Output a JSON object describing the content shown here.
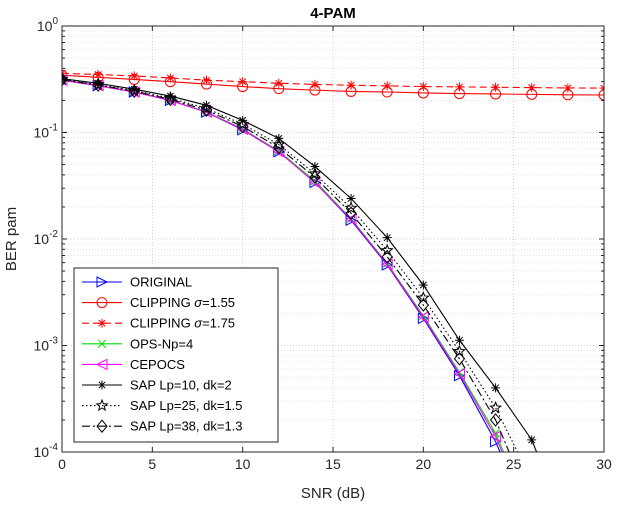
{
  "chart_data": {
    "type": "line",
    "title": "4-PAM",
    "xlabel": "SNR (dB)",
    "ylabel": "BER pam",
    "xlim": [
      0,
      30
    ],
    "ylim": [
      0.0001,
      1
    ],
    "yscale": "log",
    "grid": true,
    "legend_position": "bottom-left",
    "x_ticks": [
      "0",
      "5",
      "10",
      "15",
      "20",
      "25",
      "30"
    ],
    "y_ticks": [
      {
        "base": "10",
        "exp": "0"
      },
      {
        "base": "10",
        "exp": "-1"
      },
      {
        "base": "10",
        "exp": "-2"
      },
      {
        "base": "10",
        "exp": "-3"
      },
      {
        "base": "10",
        "exp": "-4"
      }
    ],
    "series": [
      {
        "name": "ORIGINAL",
        "color": "#0000ff",
        "dash": "solid",
        "marker": "triangle-right",
        "x": [
          0,
          2,
          4,
          6,
          8,
          10,
          12,
          14,
          16,
          18,
          20,
          22,
          24,
          25
        ],
        "y": [
          0.31,
          0.275,
          0.24,
          0.2,
          0.155,
          0.106,
          0.066,
          0.034,
          0.015,
          0.0057,
          0.0018,
          0.00052,
          0.000125,
          5e-05
        ],
        "marker_x": [
          0,
          2,
          4,
          6,
          8,
          10,
          12,
          14,
          16,
          18,
          20,
          22,
          24
        ]
      },
      {
        "name": "CLIPPING σ=1.55",
        "color": "#ff0000",
        "dash": "solid",
        "marker": "circle",
        "x": [
          0,
          2,
          4,
          6,
          8,
          10,
          12,
          14,
          16,
          18,
          20,
          22,
          24,
          26,
          28,
          30
        ],
        "y": [
          0.345,
          0.33,
          0.315,
          0.3,
          0.285,
          0.27,
          0.258,
          0.25,
          0.243,
          0.24,
          0.235,
          0.232,
          0.23,
          0.228,
          0.226,
          0.225
        ],
        "marker_x": [
          0,
          2,
          4,
          6,
          8,
          10,
          12,
          14,
          16,
          18,
          20,
          22,
          24,
          26,
          28,
          30
        ]
      },
      {
        "name": "CLIPPING σ=1.75",
        "color": "#ff0000",
        "dash": "dashed",
        "marker": "asterisk",
        "x": [
          0,
          2,
          4,
          6,
          8,
          10,
          12,
          14,
          16,
          18,
          20,
          22,
          24,
          26,
          28,
          30
        ],
        "y": [
          0.36,
          0.35,
          0.34,
          0.325,
          0.31,
          0.3,
          0.29,
          0.283,
          0.278,
          0.274,
          0.27,
          0.268,
          0.266,
          0.264,
          0.262,
          0.261
        ],
        "marker_x": [
          0,
          2,
          4,
          6,
          8,
          10,
          12,
          14,
          16,
          18,
          20,
          22,
          24,
          26,
          28,
          30
        ]
      },
      {
        "name": "OPS-Np=4",
        "color": "#00dd00",
        "dash": "solid",
        "marker": "cross",
        "x": [
          0,
          2,
          4,
          6,
          8,
          10,
          12,
          14,
          16,
          18,
          20,
          22,
          24,
          25.2
        ],
        "y": [
          0.31,
          0.275,
          0.24,
          0.2,
          0.156,
          0.108,
          0.067,
          0.035,
          0.0155,
          0.0059,
          0.0019,
          0.00056,
          0.00015,
          5e-05
        ],
        "marker_x": [
          0,
          2,
          4,
          6,
          8,
          10,
          12,
          14,
          16,
          18,
          20,
          22,
          24
        ]
      },
      {
        "name": "CEPOCS",
        "color": "#ff00ff",
        "dash": "solid",
        "marker": "triangle-left",
        "x": [
          0,
          2,
          4,
          6,
          8,
          10,
          12,
          14,
          16,
          18,
          20,
          22,
          24,
          25.1
        ],
        "y": [
          0.31,
          0.275,
          0.24,
          0.2,
          0.155,
          0.107,
          0.066,
          0.034,
          0.0153,
          0.0058,
          0.00185,
          0.00054,
          0.00014,
          5e-05
        ],
        "marker_x": [
          0,
          2,
          4,
          6,
          8,
          10,
          12,
          14,
          16,
          18,
          20,
          22,
          24
        ]
      },
      {
        "name": "SAP Lp=10, dk=2",
        "color": "#000000",
        "dash": "solid",
        "marker": "asterisk",
        "x": [
          0,
          2,
          4,
          6,
          8,
          10,
          12,
          14,
          16,
          18,
          20,
          22,
          24,
          26,
          26.5
        ],
        "y": [
          0.32,
          0.29,
          0.255,
          0.22,
          0.18,
          0.13,
          0.088,
          0.048,
          0.024,
          0.0103,
          0.0037,
          0.00112,
          0.0004,
          0.00013,
          8e-05
        ],
        "marker_x": [
          0,
          2,
          4,
          6,
          8,
          10,
          12,
          14,
          16,
          18,
          20,
          22,
          24,
          26
        ]
      },
      {
        "name": "SAP Lp=25, dk=1.5",
        "color": "#000000",
        "dash": "dotted",
        "marker": "star",
        "x": [
          0,
          2,
          4,
          6,
          8,
          10,
          12,
          14,
          16,
          18,
          20,
          22,
          24,
          25.5
        ],
        "y": [
          0.315,
          0.282,
          0.248,
          0.21,
          0.168,
          0.12,
          0.077,
          0.041,
          0.0195,
          0.0078,
          0.0028,
          0.00088,
          0.00026,
          8e-05
        ],
        "marker_x": [
          0,
          2,
          4,
          6,
          8,
          10,
          12,
          14,
          16,
          18,
          20,
          22,
          24
        ]
      },
      {
        "name": "SAP Lp=38, dk=1.3",
        "color": "#000000",
        "dash": "dashdot",
        "marker": "diamond",
        "x": [
          0,
          2,
          4,
          6,
          8,
          10,
          12,
          14,
          16,
          18,
          20,
          22,
          24,
          25.3
        ],
        "y": [
          0.313,
          0.279,
          0.244,
          0.205,
          0.162,
          0.114,
          0.072,
          0.038,
          0.0175,
          0.0068,
          0.0024,
          0.00075,
          0.0002,
          6e-05
        ],
        "marker_x": [
          0,
          2,
          4,
          6,
          8,
          10,
          12,
          14,
          16,
          18,
          20,
          22,
          24
        ]
      }
    ]
  }
}
